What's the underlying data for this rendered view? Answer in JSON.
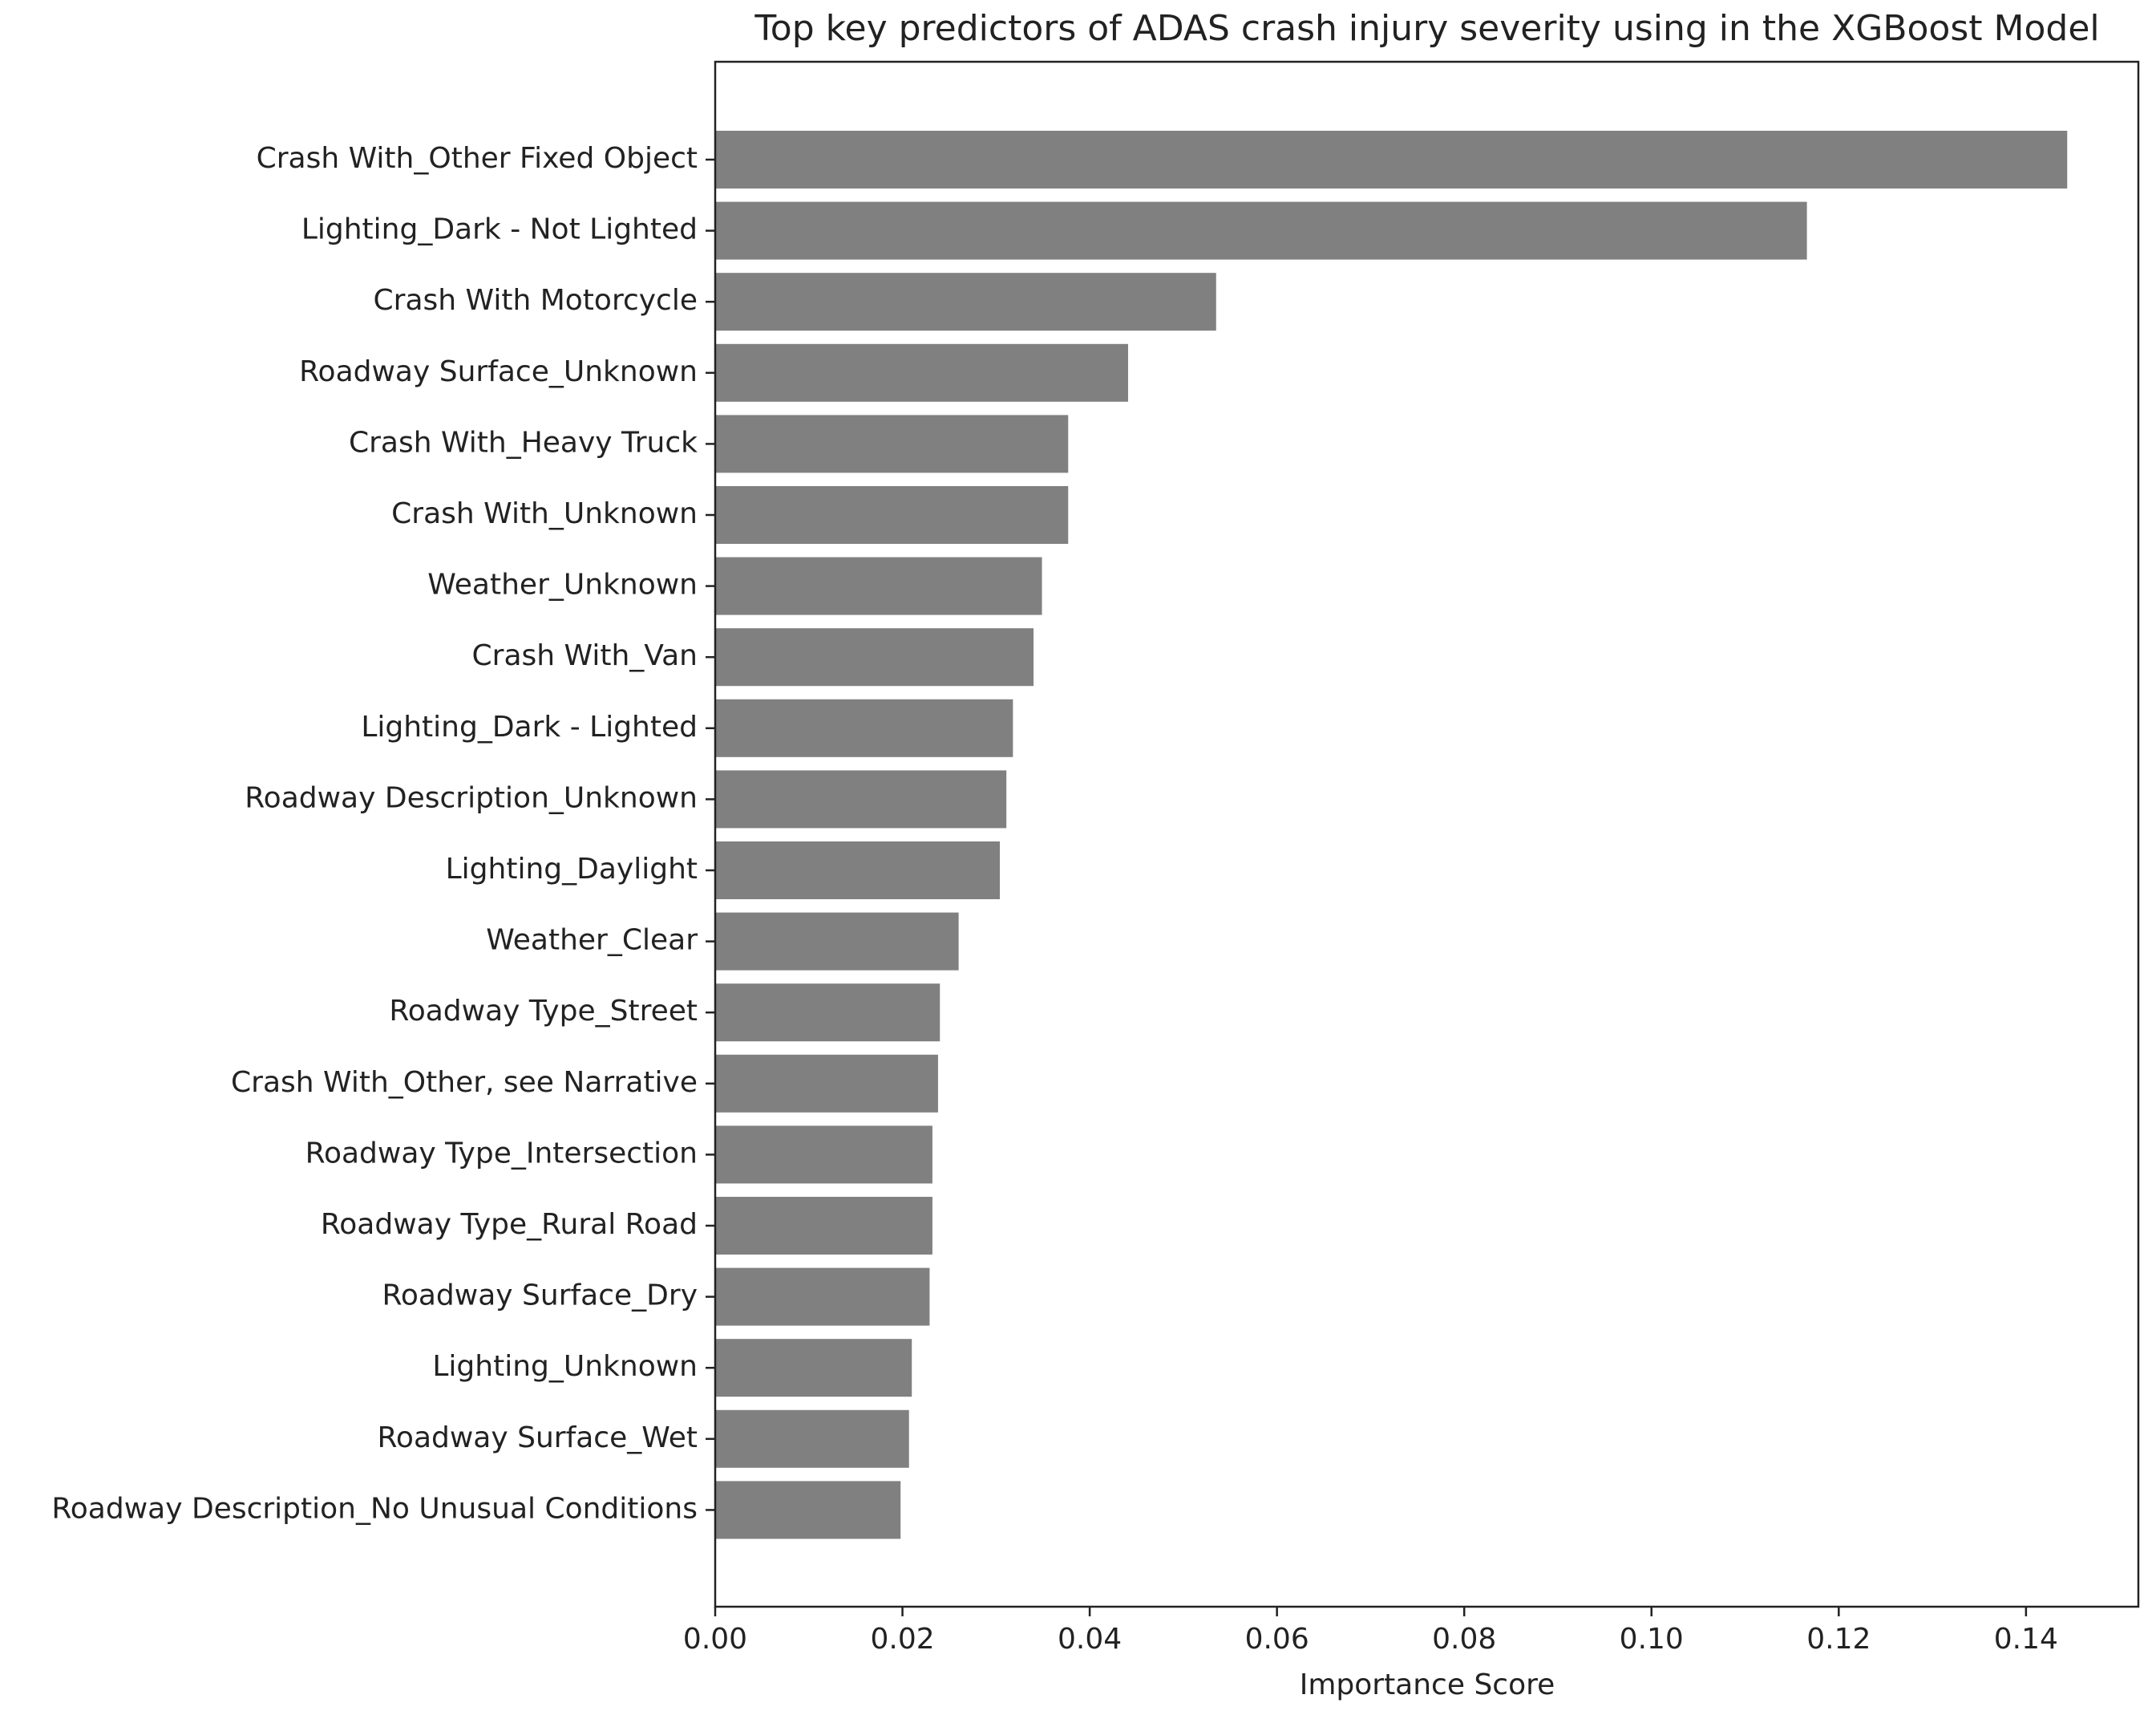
{
  "chart_data": {
    "type": "barh",
    "title": "Top key predictors of ADAS crash injury severity using in the XGBoost Model",
    "x_label": "Importance Score",
    "categories": [
      "Crash With_Other Fixed Object",
      "Lighting_Dark - Not Lighted",
      "Crash With  Motorcycle",
      "Roadway Surface_Unknown",
      "Crash With_Heavy Truck",
      "Crash With_Unknown",
      "Weather_Unknown",
      "Crash With_Van",
      "Lighting_Dark - Lighted",
      "Roadway Description_Unknown",
      "Lighting_Daylight",
      "Weather_Clear",
      "Roadway Type_Street",
      "Crash With_Other, see Narrative",
      "Roadway Type_Intersection",
      "Roadway Type_Rural Road",
      "Roadway Surface_Dry",
      "Lighting_Unknown",
      "Roadway Surface_Wet",
      "Roadway Description_No Unusual Conditions"
    ],
    "values": [
      0.1444,
      0.1166,
      0.0535,
      0.0441,
      0.0377,
      0.0377,
      0.0349,
      0.034,
      0.0318,
      0.0311,
      0.0304,
      0.026,
      0.024,
      0.0238,
      0.0232,
      0.0232,
      0.0229,
      0.021,
      0.0207,
      0.0198
    ],
    "color": "#808080",
    "xlim": [
      0,
      0.152
    ],
    "xticks": [
      {
        "value": 0,
        "label": "0.00"
      },
      0.02,
      0.04,
      0.06,
      0.08,
      {
        "value": 0.1,
        "label": "0.10"
      },
      0.12,
      0.14
    ],
    "grid": false
  }
}
